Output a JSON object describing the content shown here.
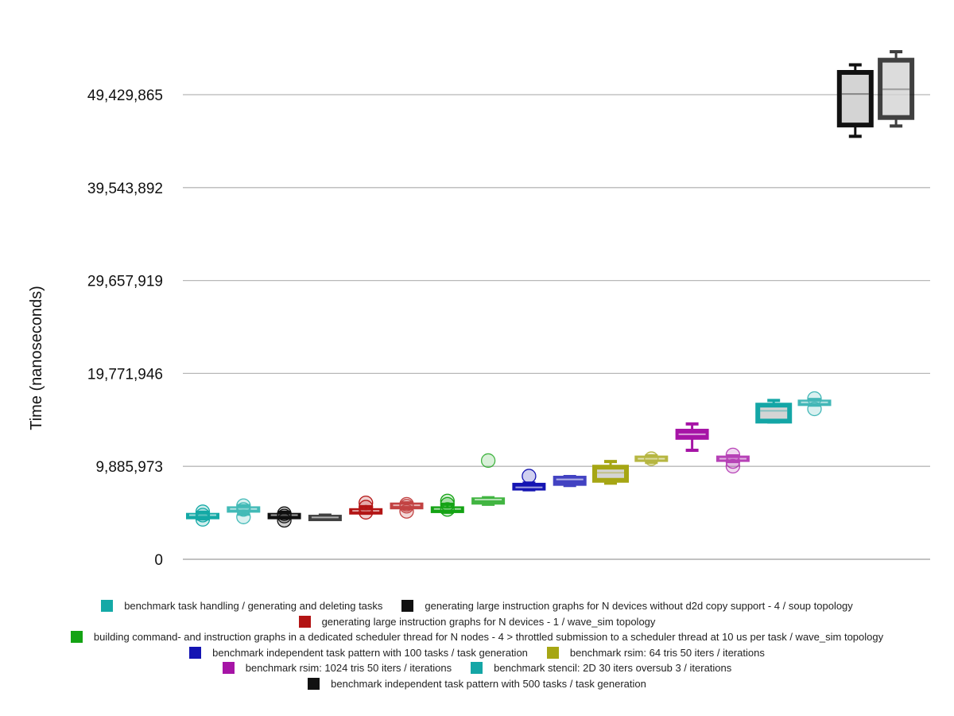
{
  "chart_data": {
    "type": "box",
    "title": "",
    "xlabel": "",
    "ylabel": "Time (nanoseconds)",
    "ylim": [
      0,
      54372852
    ],
    "y_ticks": [
      0,
      9885973,
      19771946,
      29657919,
      39543892,
      49429865
    ],
    "y_tick_labels": [
      "0",
      "9,885,973",
      "19,771,946",
      "29,657,919",
      "39,543,892",
      "49,429,865"
    ],
    "grid": true,
    "legend_position": "bottom",
    "series": [
      {
        "name": "benchmark task handling / generating and deleting tasks",
        "color": "#14a9a6",
        "boxes": [
          {
            "whisker_low": 4300000,
            "q1": 4500000,
            "median": 4700000,
            "q3": 4850000,
            "whisker_high": 5000000,
            "outliers": [
              4250000,
              4700000,
              5050000
            ]
          },
          {
            "whisker_low": 4800000,
            "q1": 5100000,
            "median": 5350000,
            "q3": 5550000,
            "whisker_high": 5700000,
            "outliers": [
              4500000,
              5300000,
              5700000
            ]
          }
        ]
      },
      {
        "name": "generating large instruction graphs for N devices without d2d copy support - 4 / soup topology",
        "color": "#111111",
        "boxes": [
          {
            "whisker_low": 4400000,
            "q1": 4500000,
            "median": 4700000,
            "q3": 4850000,
            "whisker_high": 5000000,
            "outliers": [
              4150000,
              4600000,
              4850000
            ]
          },
          {
            "whisker_low": 4250000,
            "q1": 4300000,
            "median": 4450000,
            "q3": 4650000,
            "whisker_high": 4700000,
            "outliers": []
          }
        ]
      },
      {
        "name": "generating large instruction graphs for N devices - 1 / wave_sim topology",
        "color": "#b31414",
        "boxes": [
          {
            "whisker_low": 4900000,
            "q1": 4900000,
            "median": 5150000,
            "q3": 5350000,
            "whisker_high": 5600000,
            "outliers": [
              5000000,
              5550000,
              6000000
            ]
          },
          {
            "whisker_low": 5400000,
            "q1": 5400000,
            "median": 5750000,
            "q3": 5950000,
            "whisker_high": 6000000,
            "outliers": [
              5100000,
              5850000,
              5650000
            ]
          }
        ]
      },
      {
        "name": "building command- and instruction graphs in a dedicated scheduler thread for N nodes - 4 > throttled submission to a scheduler thread at 10 us per task / wave_sim topology",
        "color": "#14a314",
        "boxes": [
          {
            "whisker_low": 5000000,
            "q1": 5000000,
            "median": 5350000,
            "q3": 5550000,
            "whisker_high": 5850000,
            "outliers": [
              5300000,
              5850000,
              6200000
            ]
          },
          {
            "whisker_low": 5850000,
            "q1": 5900000,
            "median": 6350000,
            "q3": 6500000,
            "whisker_high": 6550000,
            "outliers": [
              10500000
            ]
          }
        ]
      },
      {
        "name": "benchmark independent task pattern with  100 tasks / task generation",
        "color": "#1414b3",
        "boxes": [
          {
            "whisker_low": 7400000,
            "q1": 7400000,
            "median": 7650000,
            "q3": 8050000,
            "whisker_high": 8100000,
            "outliers": [
              8850000
            ]
          },
          {
            "whisker_low": 7850000,
            "q1": 7900000,
            "median": 8500000,
            "q3": 8800000,
            "whisker_high": 8800000,
            "outliers": []
          }
        ]
      },
      {
        "name": "benchmark rsim:   64 tris  50 iters / iterations",
        "color": "#a6a614",
        "boxes": [
          {
            "whisker_low": 8100000,
            "q1": 8400000,
            "median": 9200000,
            "q3": 9800000,
            "whisker_high": 10400000,
            "outliers": []
          },
          {
            "whisker_low": 10300000,
            "q1": 10500000,
            "median": 10700000,
            "q3": 10950000,
            "whisker_high": 11000000,
            "outliers": [
              10700000
            ]
          }
        ]
      },
      {
        "name": "benchmark rsim: 1024 tris  50 iters / iterations",
        "color": "#a614a6",
        "boxes": [
          {
            "whisker_low": 11600000,
            "q1": 12800000,
            "median": 13300000,
            "q3": 13800000,
            "whisker_high": 14400000,
            "outliers": []
          },
          {
            "whisker_low": 10400000,
            "q1": 10500000,
            "median": 10700000,
            "q3": 10950000,
            "whisker_high": 11000000,
            "outliers": [
              9900000,
              10400000,
              11100000
            ]
          }
        ]
      },
      {
        "name": "benchmark stencil: 2D  30 iters oversub 3 / iterations",
        "color": "#14a6a6",
        "boxes": [
          {
            "whisker_low": 14600000,
            "q1": 14700000,
            "median": 15800000,
            "q3": 16400000,
            "whisker_high": 16900000,
            "outliers": []
          },
          {
            "whisker_low": 16400000,
            "q1": 16400000,
            "median": 16700000,
            "q3": 16900000,
            "whisker_high": 17000000,
            "outliers": [
              16000000,
              17100000
            ]
          }
        ]
      },
      {
        "name": "benchmark independent task pattern with  500 tasks / task generation",
        "color": "#111111",
        "boxes": [
          {
            "whisker_low": 45000000,
            "q1": 46200000,
            "median": 49500000,
            "q3": 51800000,
            "whisker_high": 52600000,
            "outliers": []
          },
          {
            "whisker_low": 46100000,
            "q1": 47000000,
            "median": 50000000,
            "q3": 53100000,
            "whisker_high": 54000000,
            "outliers": []
          }
        ]
      }
    ]
  },
  "legend_rows": [
    [
      0,
      1
    ],
    [
      2
    ],
    [
      3
    ],
    [
      4,
      5
    ],
    [
      6,
      7
    ],
    [
      8
    ]
  ]
}
